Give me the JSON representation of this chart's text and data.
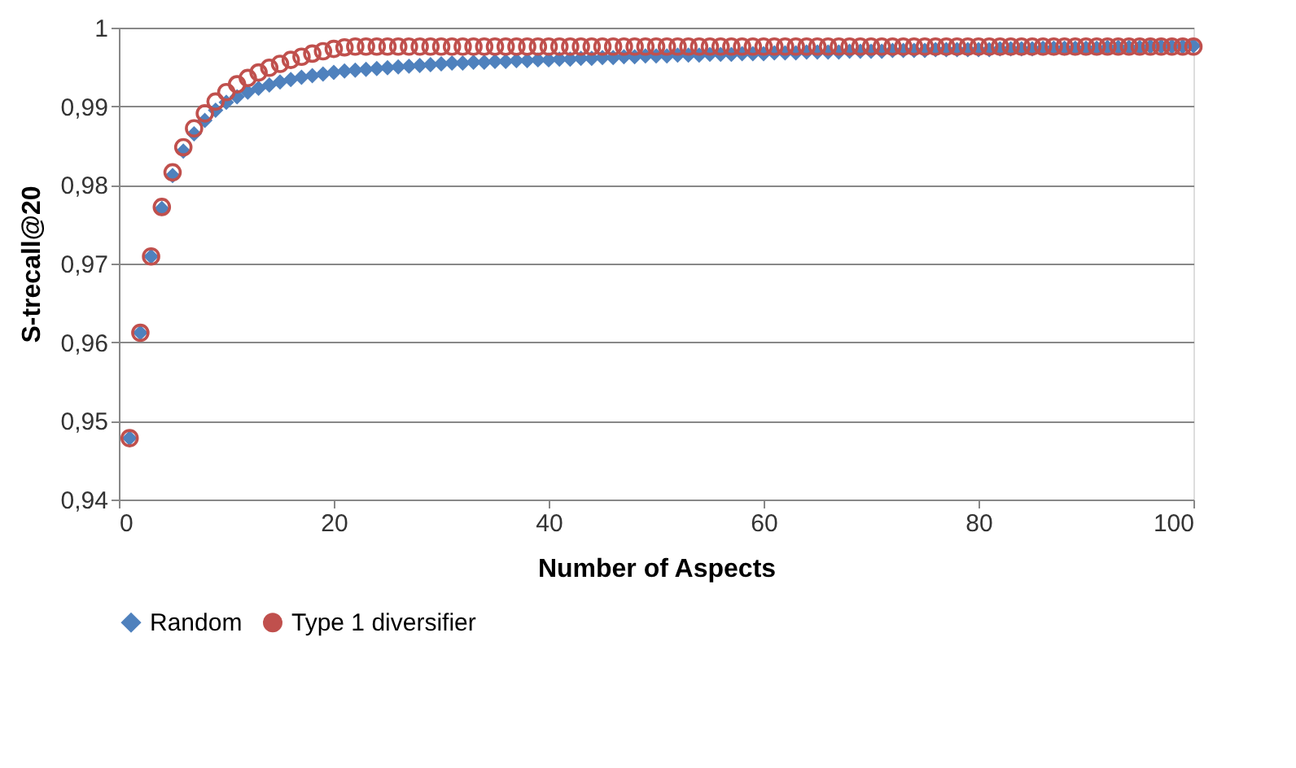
{
  "chart_data": {
    "type": "scatter",
    "xlabel": "Number of  Aspects",
    "ylabel": "S-trecall@20",
    "x": [
      1,
      2,
      3,
      4,
      5,
      6,
      7,
      8,
      9,
      10,
      11,
      12,
      13,
      14,
      15,
      16,
      17,
      18,
      19,
      20,
      21,
      22,
      23,
      24,
      25,
      26,
      27,
      28,
      29,
      30,
      31,
      32,
      33,
      34,
      35,
      36,
      37,
      38,
      39,
      40,
      41,
      42,
      43,
      44,
      45,
      46,
      47,
      48,
      49,
      50,
      51,
      52,
      53,
      54,
      55,
      56,
      57,
      58,
      59,
      60,
      61,
      62,
      63,
      64,
      65,
      66,
      67,
      68,
      69,
      70,
      71,
      72,
      73,
      74,
      75,
      76,
      77,
      78,
      79,
      80,
      81,
      82,
      83,
      84,
      85,
      86,
      87,
      88,
      89,
      90,
      91,
      92,
      93,
      94,
      95,
      96,
      97,
      98,
      99,
      100
    ],
    "series": [
      {
        "name": "Random",
        "color": "#4f81bd",
        "marker": "diamond",
        "values": [
          0.9478,
          0.9612,
          0.9709,
          0.977,
          0.9812,
          0.9843,
          0.9865,
          0.9882,
          0.9895,
          0.9905,
          0.9912,
          0.9918,
          0.9923,
          0.9927,
          0.9931,
          0.9934,
          0.9937,
          0.9939,
          0.9941,
          0.9943,
          0.9945,
          0.9946,
          0.9947,
          0.9948,
          0.9949,
          0.995,
          0.9951,
          0.9952,
          0.9953,
          0.9954,
          0.9955,
          0.9955,
          0.9956,
          0.9956,
          0.9957,
          0.9957,
          0.9958,
          0.9958,
          0.9959,
          0.9959,
          0.996,
          0.996,
          0.9961,
          0.9961,
          0.9962,
          0.9962,
          0.9963,
          0.9963,
          0.9964,
          0.9964,
          0.9964,
          0.9965,
          0.9965,
          0.9965,
          0.9966,
          0.9966,
          0.9966,
          0.9967,
          0.9967,
          0.9967,
          0.9968,
          0.9968,
          0.9968,
          0.9969,
          0.9969,
          0.9969,
          0.9969,
          0.997,
          0.997,
          0.997,
          0.997,
          0.9971,
          0.9971,
          0.9971,
          0.9971,
          0.9972,
          0.9972,
          0.9972,
          0.9972,
          0.9972,
          0.9972,
          0.9973,
          0.9973,
          0.9973,
          0.9973,
          0.9974,
          0.9974,
          0.9974,
          0.9974,
          0.9974,
          0.9974,
          0.9975,
          0.9975,
          0.9975,
          0.9975,
          0.9976,
          0.9976,
          0.9976,
          0.9976,
          0.9977
        ]
      },
      {
        "name": "Type 1 diversifier",
        "color": "#c0504d",
        "marker": "circle",
        "values": [
          0.9478,
          0.9612,
          0.9709,
          0.9772,
          0.9816,
          0.9848,
          0.9872,
          0.9891,
          0.9906,
          0.9918,
          0.9928,
          0.9936,
          0.9943,
          0.9949,
          0.9954,
          0.9959,
          0.9963,
          0.9967,
          0.997,
          0.9973,
          0.9975,
          0.9976,
          0.9976,
          0.9976,
          0.9976,
          0.9976,
          0.9976,
          0.9976,
          0.9976,
          0.9976,
          0.9976,
          0.9976,
          0.9976,
          0.9976,
          0.9976,
          0.9976,
          0.9976,
          0.9976,
          0.9976,
          0.9976,
          0.9976,
          0.9976,
          0.9976,
          0.9976,
          0.9976,
          0.9976,
          0.9976,
          0.9976,
          0.9976,
          0.9976,
          0.9976,
          0.9976,
          0.9976,
          0.9976,
          0.9976,
          0.9976,
          0.9976,
          0.9976,
          0.9976,
          0.9976,
          0.9976,
          0.9976,
          0.9976,
          0.9976,
          0.9976,
          0.9976,
          0.9976,
          0.9976,
          0.9976,
          0.9976,
          0.9976,
          0.9976,
          0.9976,
          0.9976,
          0.9976,
          0.9976,
          0.9976,
          0.9976,
          0.9976,
          0.9976,
          0.9976,
          0.9976,
          0.9976,
          0.9976,
          0.9976,
          0.9976,
          0.9976,
          0.9976,
          0.9976,
          0.9976,
          0.9976,
          0.9976,
          0.9976,
          0.9976,
          0.9976,
          0.9976,
          0.9976,
          0.9976,
          0.9976,
          0.9976
        ]
      }
    ],
    "xlim": [
      0,
      100
    ],
    "xticks": [
      0,
      20,
      40,
      60,
      80,
      100
    ],
    "ylim": [
      0.94,
      1
    ],
    "yticks": [
      {
        "value": 0.94,
        "label": "0,94"
      },
      {
        "value": 0.95,
        "label": "0,95"
      },
      {
        "value": 0.96,
        "label": "0,96"
      },
      {
        "value": 0.97,
        "label": "0,97"
      },
      {
        "value": 0.98,
        "label": "0,98"
      },
      {
        "value": 0.99,
        "label": "0,99"
      },
      1
    ],
    "grid": "y",
    "legend": "bottom"
  }
}
